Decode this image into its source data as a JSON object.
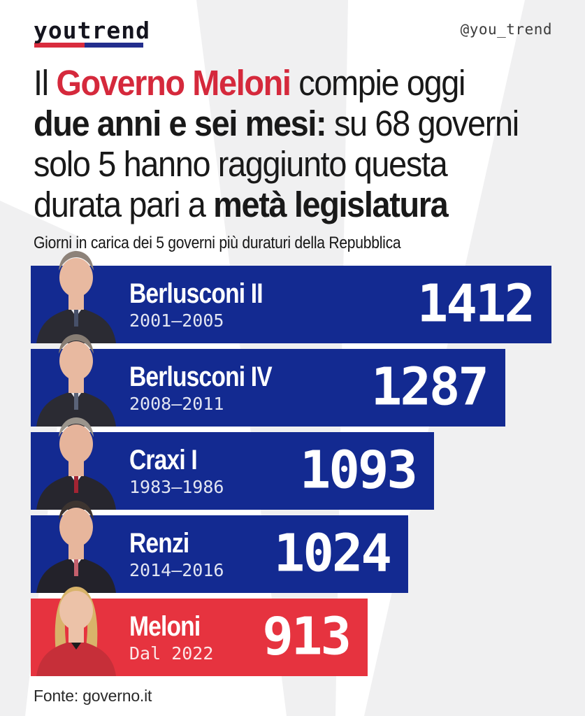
{
  "page": {
    "background": "#ffffff",
    "watermark_color": "#f0f0f1",
    "accent_red": "#d5293c",
    "bar_blue": "#132a91",
    "bar_red": "#e6333f"
  },
  "header": {
    "logo_text": "youtrend",
    "logo_underline_red": "#d92c3e",
    "logo_underline_blue": "#232e8d",
    "handle": "@you_trend"
  },
  "title": {
    "lines": [
      [
        {
          "t": "Il ",
          "s": "n"
        },
        {
          "t": "Governo Meloni",
          "s": "rb"
        },
        {
          "t": " compie oggi",
          "s": "n"
        }
      ],
      [
        {
          "t": "due anni e sei mesi:",
          "s": "b"
        },
        {
          "t": " su 68 governi",
          "s": "n"
        }
      ],
      [
        {
          "t": "solo 5 hanno raggiunto questa",
          "s": "n"
        }
      ],
      [
        {
          "t": "durata pari a ",
          "s": "n"
        },
        {
          "t": "metà legislatura",
          "s": "b"
        }
      ]
    ]
  },
  "subtitle": "Giorni in carica dei 5 governi più duraturi della Repubblica",
  "chart_data": {
    "type": "bar",
    "orientation": "horizontal",
    "title": "Giorni in carica dei 5 governi più duraturi della Repubblica",
    "unit": "giorni in carica",
    "categories": [
      "Berlusconi II",
      "Berlusconi IV",
      "Craxi I",
      "Renzi",
      "Meloni"
    ],
    "values": [
      1412,
      1287,
      1093,
      1024,
      913
    ],
    "periods": [
      "2001–2005",
      "2008–2011",
      "1983–1986",
      "2014–2016",
      "Dal 2022"
    ],
    "bar_colors": [
      "#132a91",
      "#132a91",
      "#132a91",
      "#132a91",
      "#e6333f"
    ],
    "value_labels_inside": true,
    "axis": "none",
    "grid": false
  },
  "governments": [
    {
      "name": "Berlusconi II",
      "period": "2001–2005",
      "days": "1412",
      "bar_color": "#132a91",
      "photo": {
        "hair": "#8d8279",
        "skin": "#e8b9a0",
        "suit": "#2b2b33",
        "shirt": "#e9e9ee",
        "tie": "#475069",
        "long_hair": false
      }
    },
    {
      "name": "Berlusconi IV",
      "period": "2008–2011",
      "days": "1287",
      "bar_color": "#132a91",
      "photo": {
        "hair": "#877d74",
        "skin": "#e8b9a0",
        "suit": "#2b2b33",
        "shirt": "#e9e9ee",
        "tie": "#5a6378",
        "long_hair": false
      }
    },
    {
      "name": "Craxi I",
      "period": "1983–1986",
      "days": "1093",
      "bar_color": "#132a91",
      "photo": {
        "hair": "#9a948c",
        "skin": "#e6b49b",
        "suit": "#27262e",
        "shirt": "#efefef",
        "tie": "#a32433",
        "long_hair": false
      }
    },
    {
      "name": "Renzi",
      "period": "2014–2016",
      "days": "1024",
      "bar_color": "#132a91",
      "photo": {
        "hair": "#3d3430",
        "skin": "#e7b69c",
        "suit": "#23222a",
        "shirt": "#f2f2f2",
        "tie": "#c4606d",
        "long_hair": false
      }
    },
    {
      "name": "Meloni",
      "period": "Dal 2022",
      "days": "913",
      "bar_color": "#e6333f",
      "photo": {
        "hair": "#d8b36a",
        "skin": "#ecc2a8",
        "suit": "#c62f39",
        "shirt": "#1c1c1c",
        "tie": "none",
        "long_hair": true
      }
    }
  ],
  "footer": {
    "source": "Fonte: governo.it"
  }
}
